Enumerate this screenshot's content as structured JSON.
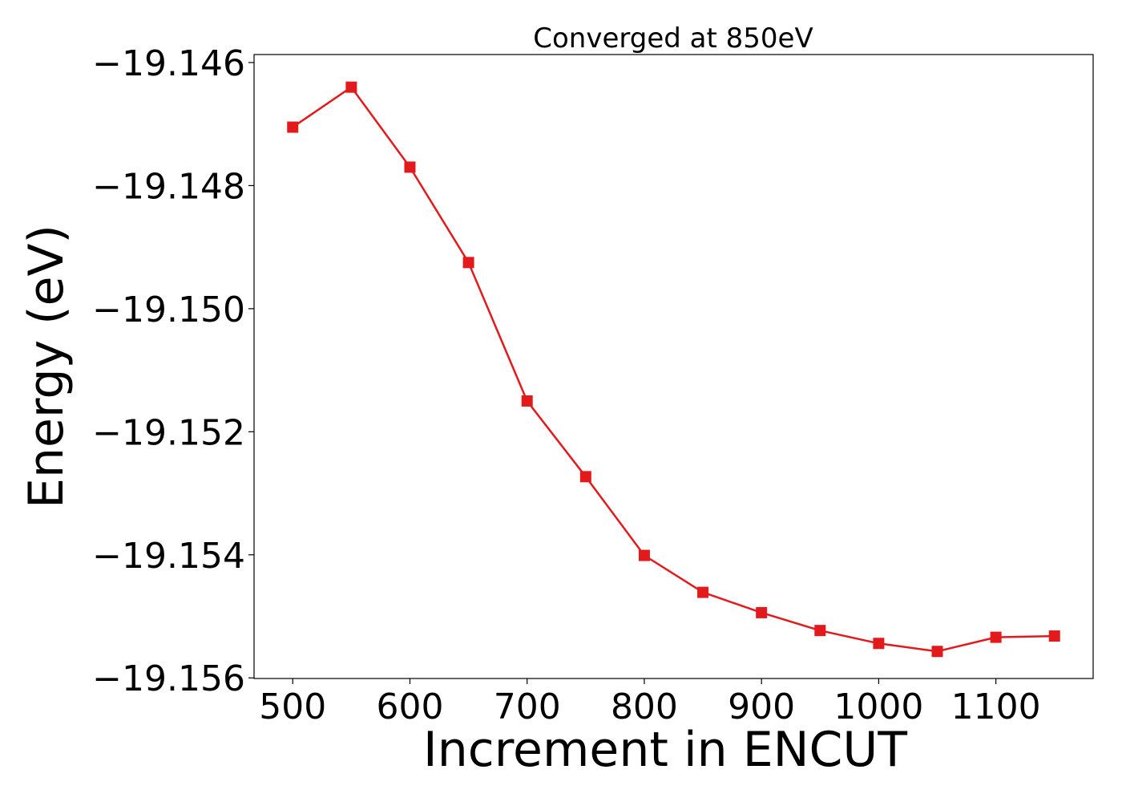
{
  "chart_data": {
    "type": "line",
    "title": "Converged at 850eV",
    "xlabel": "Increment in ENCUT",
    "ylabel": "Energy (eV)",
    "xlim": [
      467,
      1183
    ],
    "ylim": [
      -19.15601,
      -19.14587
    ],
    "xticks": [
      500,
      600,
      700,
      800,
      900,
      1000,
      1100
    ],
    "xtick_labels": [
      "500",
      "600",
      "700",
      "800",
      "900",
      "1000",
      "1100"
    ],
    "yticks": [
      -19.146,
      -19.148,
      -19.15,
      -19.152,
      -19.154,
      -19.156
    ],
    "ytick_labels": [
      "−19.146",
      "−19.148",
      "−19.150",
      "−19.152",
      "−19.154",
      "−19.156"
    ],
    "grid": false,
    "series": [
      {
        "color": "#e31a1c",
        "marker": "square",
        "x": [
          500,
          550,
          600,
          650,
          700,
          750,
          800,
          850,
          900,
          950,
          1000,
          1050,
          1100,
          1150
        ],
        "y": [
          -19.14705,
          -19.1464,
          -19.1477,
          -19.14925,
          -19.1515,
          -19.15273,
          -19.15401,
          -19.15461,
          -19.15494,
          -19.15523,
          -19.15544,
          -19.15557,
          -19.15534,
          -19.15532
        ]
      }
    ]
  }
}
